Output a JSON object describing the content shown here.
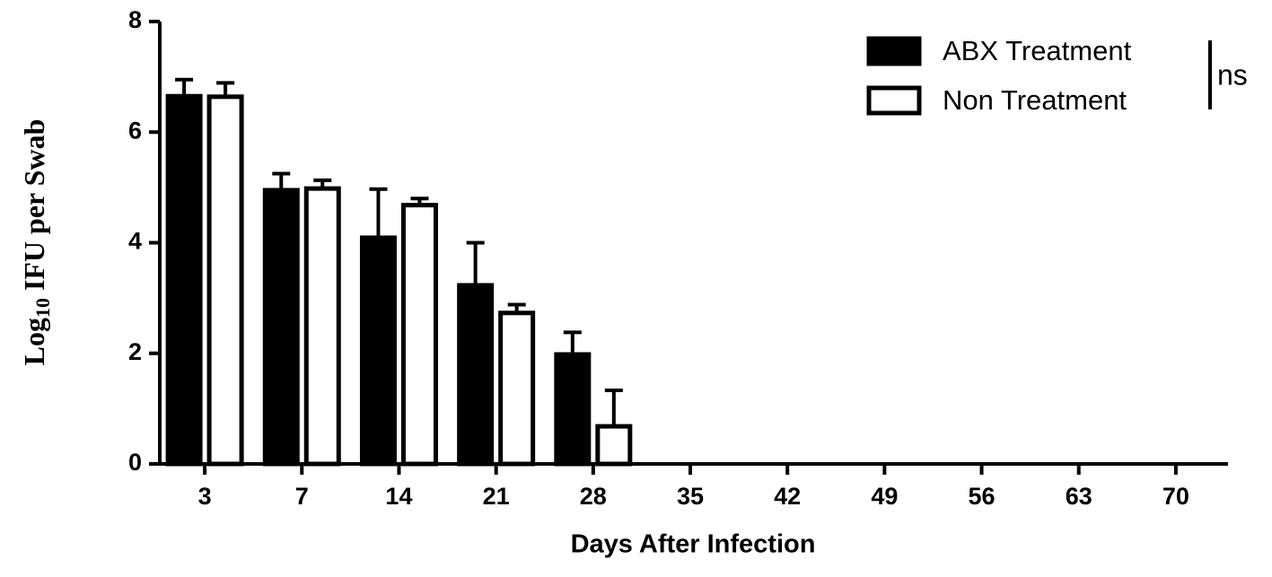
{
  "chart_data": {
    "type": "bar",
    "x_label": "Days After Infection",
    "y_label_parts": [
      "Log",
      "10",
      "IFU per Swab"
    ],
    "categories": [
      "3",
      "7",
      "14",
      "21",
      "28",
      "35",
      "42",
      "49",
      "56",
      "63",
      "70"
    ],
    "series": [
      {
        "name": "ABX Treatment",
        "color": "#000000",
        "values": [
          6.65,
          4.95,
          4.09,
          3.23,
          1.98,
          null,
          null,
          null,
          null,
          null,
          null
        ],
        "errors": [
          0.3,
          0.3,
          0.88,
          0.77,
          0.4,
          null,
          null,
          null,
          null,
          null,
          null
        ]
      },
      {
        "name": "Non Treatment",
        "color": "#ffffff",
        "values": [
          6.64,
          4.98,
          4.68,
          2.73,
          0.68,
          null,
          null,
          null,
          null,
          null,
          null
        ],
        "errors": [
          0.25,
          0.15,
          0.12,
          0.15,
          0.65,
          null,
          null,
          null,
          null,
          null,
          null
        ]
      }
    ],
    "annotation": "ns",
    "ylim": [
      0,
      8
    ],
    "yticks": [
      0,
      2,
      4,
      6,
      8
    ]
  }
}
